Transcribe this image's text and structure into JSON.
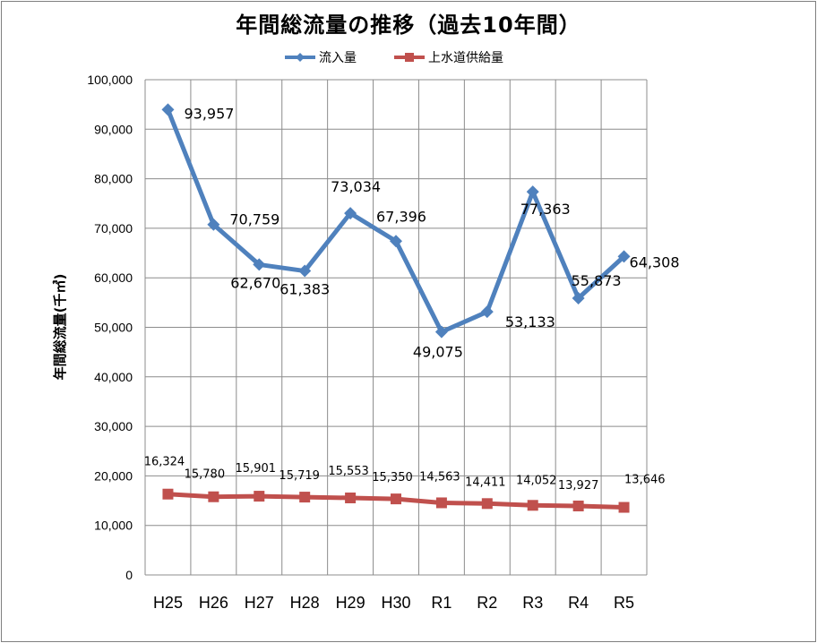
{
  "chart_data": {
    "type": "line",
    "title": "年間総流量の推移（過去10年間）",
    "ylabel": "年間総流量(千㎥)",
    "xlabel": "",
    "categories": [
      "H25",
      "H26",
      "H27",
      "H28",
      "H29",
      "H30",
      "R1",
      "R2",
      "R3",
      "R4",
      "R5"
    ],
    "ylim": [
      0,
      100000
    ],
    "ytick_step": 10000,
    "ytick_labels": [
      "0",
      "10,000",
      "20,000",
      "30,000",
      "40,000",
      "50,000",
      "60,000",
      "70,000",
      "80,000",
      "90,000",
      "100,000"
    ],
    "grid": true,
    "legend_position": "top",
    "series": [
      {
        "name": "流入量",
        "color": "#4F81BD",
        "marker": "diamond",
        "values": [
          93957,
          70759,
          62670,
          61383,
          73034,
          67396,
          49075,
          53133,
          77363,
          55873,
          64308
        ],
        "labels": [
          "93,957",
          "70,759",
          "62,670",
          "61,383",
          "73,034",
          "67,396",
          "49,075",
          "53,133",
          "77,363",
          "55,873",
          "64,308"
        ]
      },
      {
        "name": "上水道供給量",
        "color": "#C0504D",
        "marker": "square",
        "values": [
          16324,
          15780,
          15901,
          15719,
          15553,
          15350,
          14563,
          14411,
          14052,
          13927,
          13646
        ],
        "labels": [
          "16,324",
          "15,780",
          "15,901",
          "15,719",
          "15,553",
          "15,350",
          "14,563",
          "14,411",
          "14,052",
          "13,927",
          "13,646"
        ]
      }
    ]
  }
}
